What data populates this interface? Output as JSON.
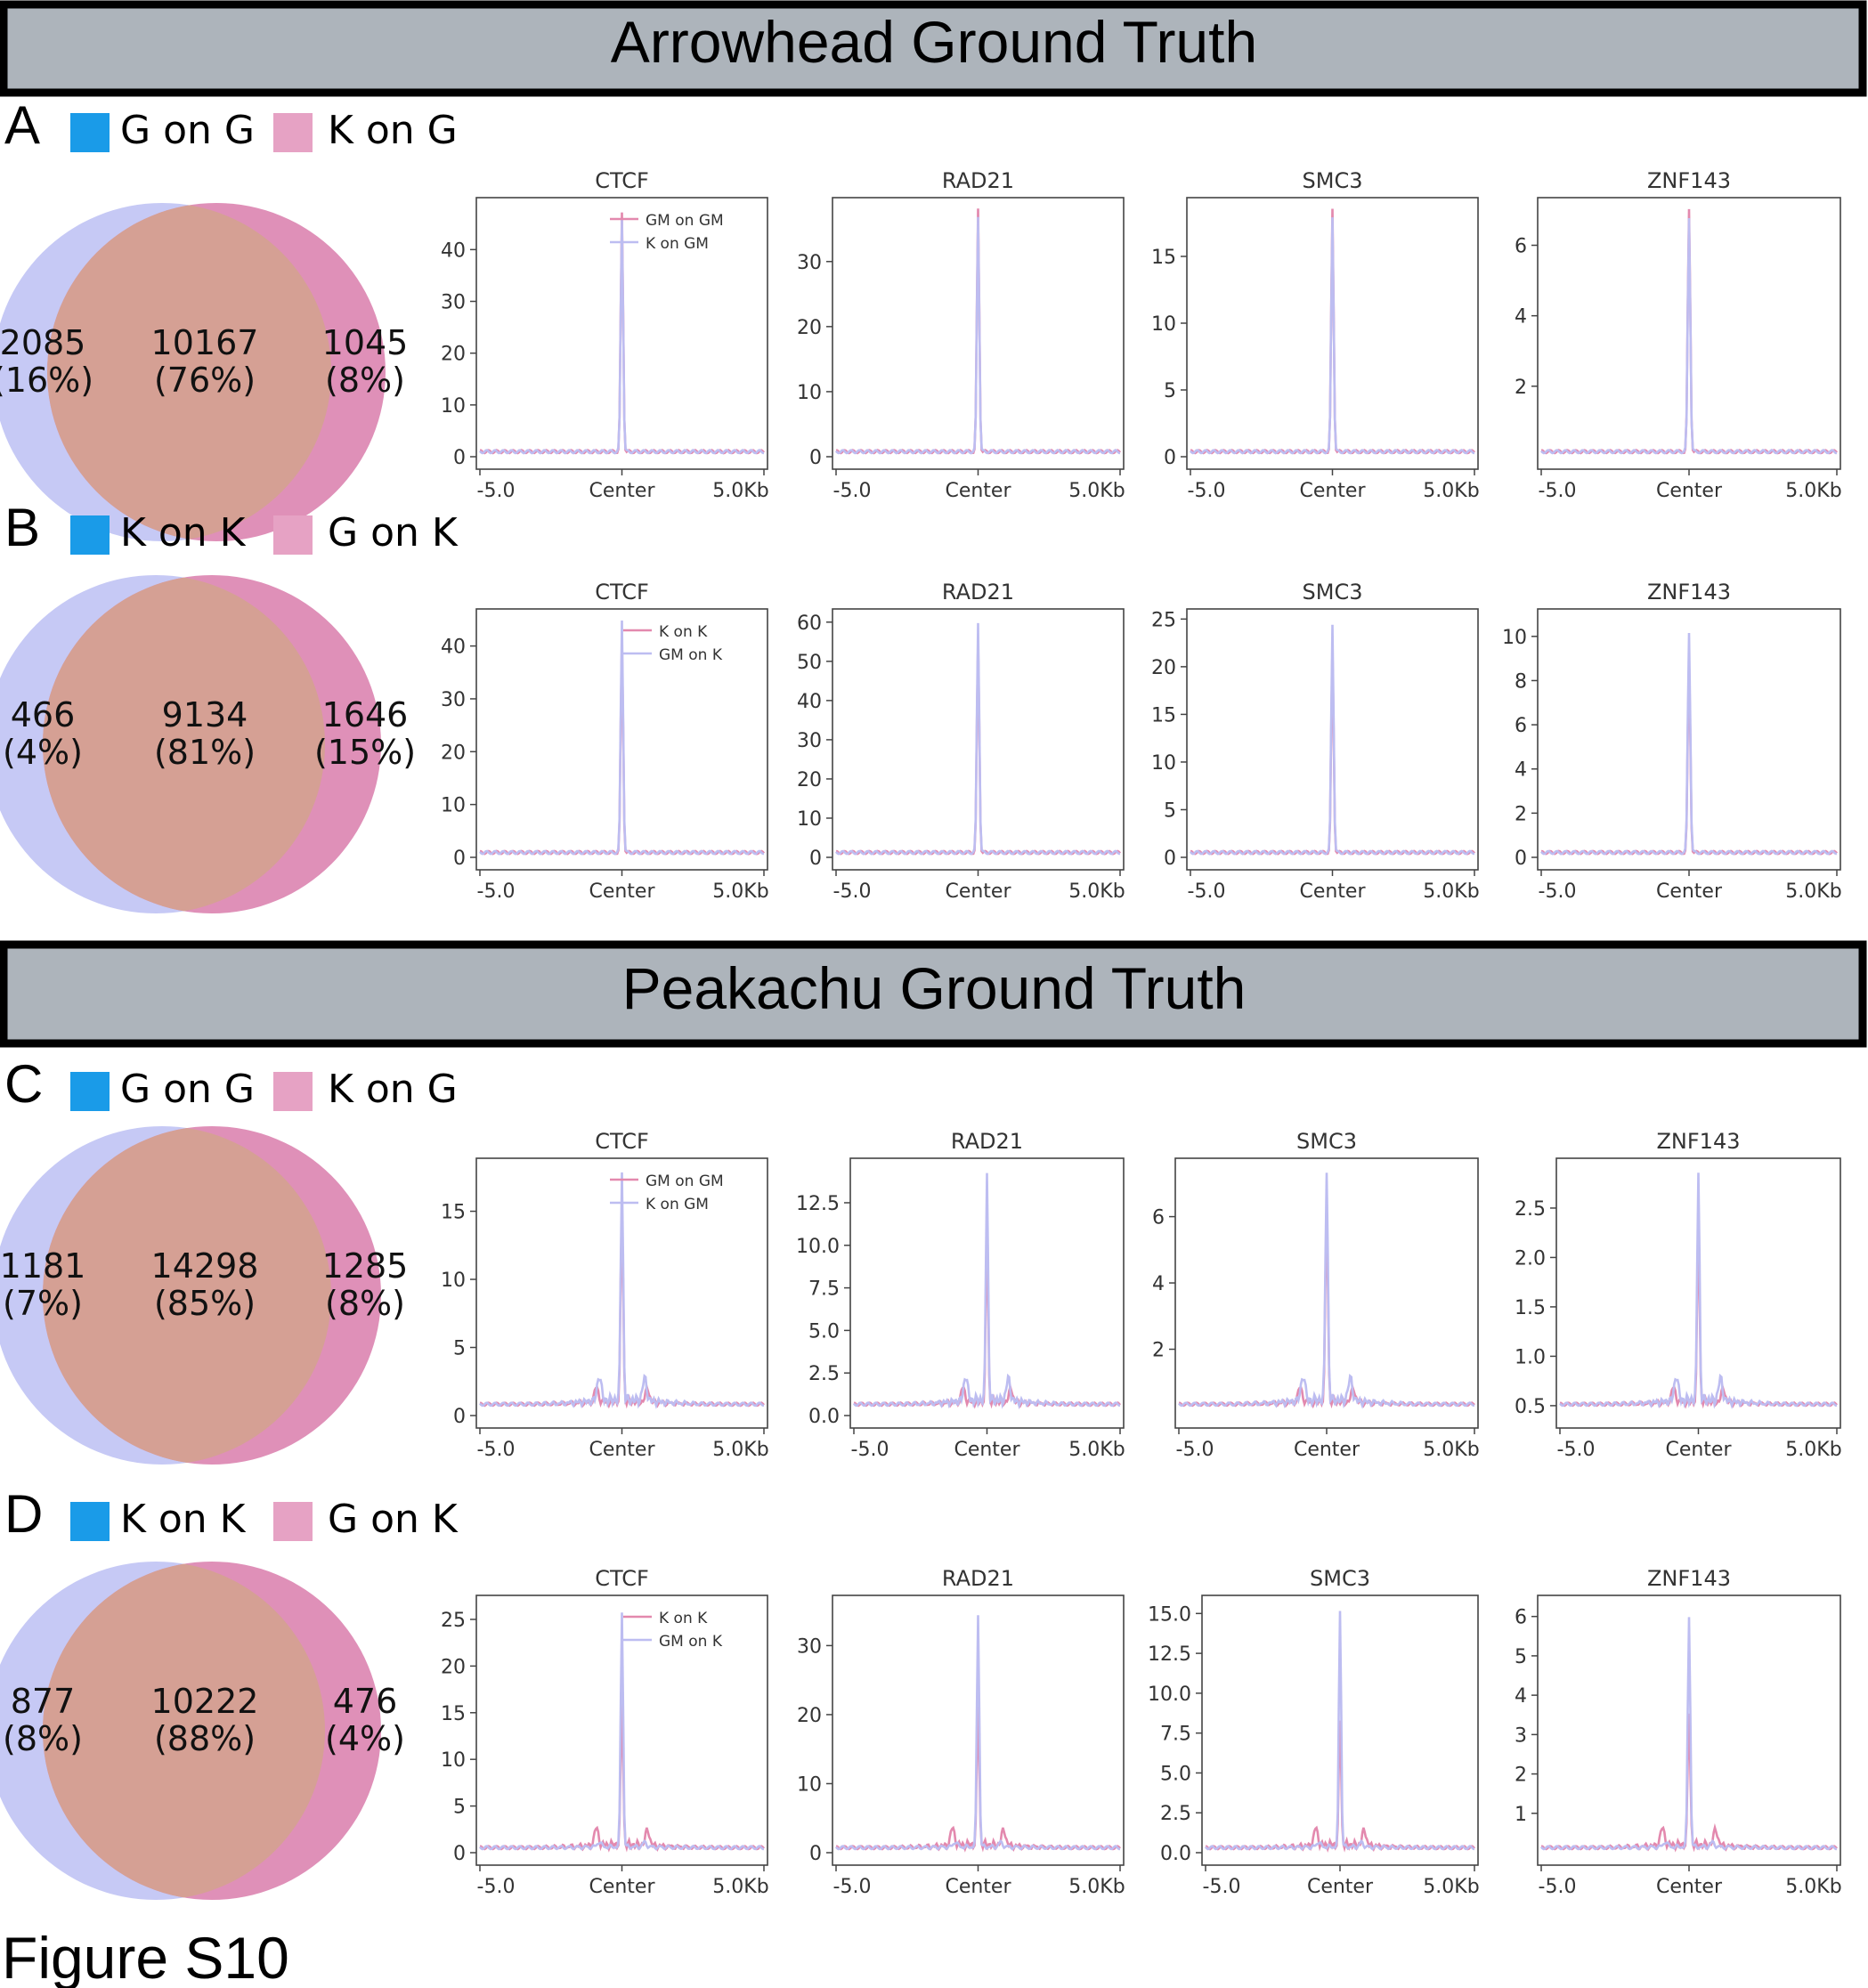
{
  "figure_label": "Figure S10",
  "banners": [
    {
      "title": "Arrowhead Ground Truth"
    },
    {
      "title": "Peakachu Ground Truth"
    }
  ],
  "colors": {
    "blue_square": "#1a9be8",
    "pink_square": "#e6a2c4",
    "overlap": "#d5a094",
    "left_circle": "#c6c9f5",
    "right_circle": "#df90b8",
    "line_pink": "#e389ae",
    "line_lilac": "#bdbdf1",
    "banner_bg": "#adb4bb"
  },
  "panels": [
    {
      "letter": "A",
      "legend": [
        "G on G",
        "K on G"
      ],
      "venn": {
        "left": {
          "count": "2085",
          "pct": "(16%)"
        },
        "center": {
          "count": "10167",
          "pct": "(76%)"
        },
        "right": {
          "count": "1045",
          "pct": "(8%)"
        }
      },
      "line_legend": [
        "GM on GM",
        "K on GM"
      ],
      "plots": [
        {
          "name": "CTCF",
          "yticks": [
            "0",
            "10",
            "20",
            "30",
            "40"
          ],
          "ymax": 49,
          "peak_a": 47,
          "peak_b": 46,
          "sh": 0
        },
        {
          "name": "RAD21",
          "yticks": [
            "0",
            "10",
            "20",
            "30"
          ],
          "ymax": 39,
          "peak_a": 38,
          "peak_b": 37,
          "sh": 0
        },
        {
          "name": "SMC3",
          "yticks": [
            "0",
            "5",
            "10",
            "15"
          ],
          "ymax": 19,
          "peak_a": 18.5,
          "peak_b": 18,
          "sh": 0
        },
        {
          "name": "ZNF143",
          "yticks": [
            "2",
            "4",
            "6"
          ],
          "ymin": 0,
          "ymax": 7.2,
          "peak_a": 7,
          "peak_b": 6.8,
          "sh": 0
        }
      ]
    },
    {
      "letter": "B",
      "legend": [
        "K on K",
        "G on K"
      ],
      "venn": {
        "left": {
          "count": "466",
          "pct": "(4%)"
        },
        "center": {
          "count": "9134",
          "pct": "(81%)"
        },
        "right": {
          "count": "1646",
          "pct": "(15%)"
        }
      },
      "line_legend": [
        "K on K",
        "GM on K"
      ],
      "plots": [
        {
          "name": "CTCF",
          "yticks": [
            "0",
            "10",
            "20",
            "30",
            "40"
          ],
          "ymax": 46,
          "peak_a": 41,
          "peak_b": 45,
          "sh": 0
        },
        {
          "name": "RAD21",
          "yticks": [
            "0",
            "10",
            "20",
            "30",
            "40",
            "50",
            "60"
          ],
          "ymax": 62,
          "peak_a": 55,
          "peak_b": 60,
          "sh": 0
        },
        {
          "name": "SMC3",
          "yticks": [
            "0",
            "5",
            "10",
            "15",
            "20",
            "25"
          ],
          "ymax": 25.5,
          "peak_a": 22,
          "peak_b": 24.5,
          "sh": 0
        },
        {
          "name": "ZNF143",
          "yticks": [
            "0",
            "2",
            "4",
            "6",
            "8",
            "10"
          ],
          "ymax": 11,
          "peak_a": 9,
          "peak_b": 10.2,
          "sh": 0
        }
      ]
    },
    {
      "letter": "C",
      "legend": [
        "G on G",
        "K on G"
      ],
      "venn": {
        "left": {
          "count": "1181",
          "pct": "(7%)"
        },
        "center": {
          "count": "14298",
          "pct": "(85%)"
        },
        "right": {
          "count": "1285",
          "pct": "(8%)"
        }
      },
      "line_legend": [
        "GM on GM",
        "K on GM"
      ],
      "plots": [
        {
          "name": "CTCF",
          "yticks": [
            "0",
            "5",
            "10",
            "15"
          ],
          "ymax": 18.5,
          "peak_a": 15.5,
          "peak_b": 17.8,
          "sh": 1
        },
        {
          "name": "RAD21",
          "yticks": [
            "0.0",
            "2.5",
            "5.0",
            "7.5",
            "10.0",
            "12.5"
          ],
          "ymax": 14.8,
          "peak_a": 11,
          "peak_b": 14.2,
          "sh": 1
        },
        {
          "name": "SMC3",
          "yticks": [
            "2",
            "4",
            "6"
          ],
          "ymin": 0,
          "ymax": 7.6,
          "peak_a": 6.2,
          "peak_b": 7.3,
          "sh": 1
        },
        {
          "name": "ZNF143",
          "yticks": [
            "0.5",
            "1.0",
            "1.5",
            "2.0",
            "2.5"
          ],
          "ymin": 0.4,
          "ymax": 2.95,
          "peak_a": 2.3,
          "peak_b": 2.85,
          "sh": 1
        }
      ]
    },
    {
      "letter": "D",
      "legend": [
        "K on K",
        "G on K"
      ],
      "venn": {
        "left": {
          "count": "877",
          "pct": "(8%)"
        },
        "center": {
          "count": "10222",
          "pct": "(88%)"
        },
        "right": {
          "count": "476",
          "pct": "(4%)"
        }
      },
      "line_legend": [
        "K on K",
        "GM on K"
      ],
      "plots": [
        {
          "name": "CTCF",
          "yticks": [
            "0",
            "5",
            "10",
            "15",
            "20",
            "25"
          ],
          "ymax": 27,
          "peak_a": 16,
          "peak_b": 25.8,
          "sh": 2
        },
        {
          "name": "RAD21",
          "yticks": [
            "0",
            "10",
            "20",
            "30"
          ],
          "ymax": 36.5,
          "peak_a": 21,
          "peak_b": 34.5,
          "sh": 2
        },
        {
          "name": "SMC3",
          "yticks": [
            "0.0",
            "2.5",
            "5.0",
            "7.5",
            "10.0",
            "12.5",
            "15.0"
          ],
          "ymax": 15.8,
          "peak_a": 8.2,
          "peak_b": 15.2,
          "sh": 2
        },
        {
          "name": "ZNF143",
          "yticks": [
            "1",
            "2",
            "3",
            "4",
            "5",
            "6"
          ],
          "ymin": 0,
          "ymax": 6.4,
          "peak_a": 3.5,
          "peak_b": 6.0,
          "sh": 2
        }
      ]
    }
  ],
  "xticks": [
    "-5.0",
    "Center",
    "5.0Kb"
  ],
  "chart_data": {
    "type": "line",
    "x": [
      "-5.0",
      "Center",
      "5.0Kb"
    ],
    "series_note_free": true,
    "charts": [
      {
        "panel": "A",
        "title": "CTCF",
        "series": [
          {
            "name": "GM on GM",
            "peak": 47
          },
          {
            "name": "K on GM",
            "peak": 46
          }
        ],
        "ylim": [
          0,
          49
        ]
      },
      {
        "panel": "A",
        "title": "RAD21",
        "series": [
          {
            "name": "GM on GM",
            "peak": 38
          },
          {
            "name": "K on GM",
            "peak": 37
          }
        ],
        "ylim": [
          0,
          39
        ]
      },
      {
        "panel": "A",
        "title": "SMC3",
        "series": [
          {
            "name": "GM on GM",
            "peak": 18.5
          },
          {
            "name": "K on GM",
            "peak": 18
          }
        ],
        "ylim": [
          0,
          19
        ]
      },
      {
        "panel": "A",
        "title": "ZNF143",
        "series": [
          {
            "name": "GM on GM",
            "peak": 7
          },
          {
            "name": "K on GM",
            "peak": 6.8
          }
        ],
        "ylim": [
          0,
          7.2
        ]
      },
      {
        "panel": "B",
        "title": "CTCF",
        "series": [
          {
            "name": "K on K",
            "peak": 41
          },
          {
            "name": "GM on K",
            "peak": 45
          }
        ],
        "ylim": [
          0,
          46
        ]
      },
      {
        "panel": "B",
        "title": "RAD21",
        "series": [
          {
            "name": "K on K",
            "peak": 55
          },
          {
            "name": "GM on K",
            "peak": 60
          }
        ],
        "ylim": [
          0,
          62
        ]
      },
      {
        "panel": "B",
        "title": "SMC3",
        "series": [
          {
            "name": "K on K",
            "peak": 22
          },
          {
            "name": "GM on K",
            "peak": 24.5
          }
        ],
        "ylim": [
          0,
          25.5
        ]
      },
      {
        "panel": "B",
        "title": "ZNF143",
        "series": [
          {
            "name": "K on K",
            "peak": 9
          },
          {
            "name": "GM on K",
            "peak": 10.2
          }
        ],
        "ylim": [
          0,
          11
        ]
      },
      {
        "panel": "C",
        "title": "CTCF",
        "series": [
          {
            "name": "GM on GM",
            "peak": 15.5
          },
          {
            "name": "K on GM",
            "peak": 17.8
          }
        ],
        "ylim": [
          0,
          18.5
        ]
      },
      {
        "panel": "C",
        "title": "RAD21",
        "series": [
          {
            "name": "GM on GM",
            "peak": 11
          },
          {
            "name": "K on GM",
            "peak": 14.2
          }
        ],
        "ylim": [
          0,
          14.8
        ]
      },
      {
        "panel": "C",
        "title": "SMC3",
        "series": [
          {
            "name": "GM on GM",
            "peak": 6.2
          },
          {
            "name": "K on GM",
            "peak": 7.3
          }
        ],
        "ylim": [
          0,
          7.6
        ]
      },
      {
        "panel": "C",
        "title": "ZNF143",
        "series": [
          {
            "name": "GM on GM",
            "peak": 2.3
          },
          {
            "name": "K on GM",
            "peak": 2.85
          }
        ],
        "ylim": [
          0.4,
          2.95
        ]
      },
      {
        "panel": "D",
        "title": "CTCF",
        "series": [
          {
            "name": "K on K",
            "peak": 16
          },
          {
            "name": "GM on K",
            "peak": 25.8
          }
        ],
        "ylim": [
          0,
          27
        ]
      },
      {
        "panel": "D",
        "title": "RAD21",
        "series": [
          {
            "name": "K on K",
            "peak": 21
          },
          {
            "name": "GM on K",
            "peak": 34.5
          }
        ],
        "ylim": [
          0,
          36.5
        ]
      },
      {
        "panel": "D",
        "title": "SMC3",
        "series": [
          {
            "name": "K on K",
            "peak": 8.2
          },
          {
            "name": "GM on K",
            "peak": 15.2
          }
        ],
        "ylim": [
          0,
          15.8
        ]
      },
      {
        "panel": "D",
        "title": "ZNF143",
        "series": [
          {
            "name": "K on K",
            "peak": 3.5
          },
          {
            "name": "GM on K",
            "peak": 6.0
          }
        ],
        "ylim": [
          0,
          6.4
        ]
      }
    ]
  }
}
